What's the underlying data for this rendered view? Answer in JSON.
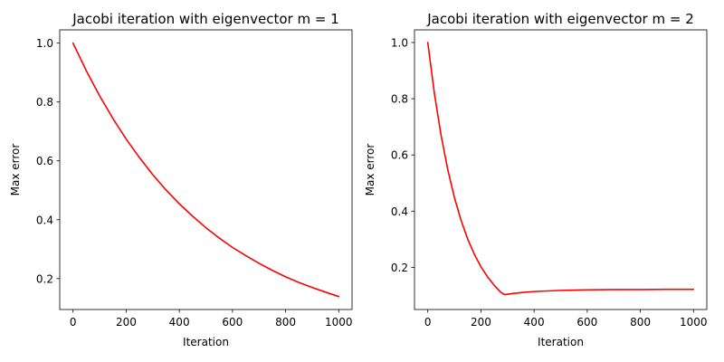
{
  "chart_data": [
    {
      "type": "line",
      "title": "Jacobi iteration with eigenvector m = 1",
      "xlabel": "Iteration",
      "ylabel": "Max error",
      "xlim": [
        -50,
        1050
      ],
      "ylim": [
        0.095,
        1.045
      ],
      "xticks": [
        0,
        200,
        400,
        600,
        800,
        1000
      ],
      "yticks": [
        0.2,
        0.4,
        0.6,
        0.8,
        1.0
      ],
      "xtick_labels": [
        "0",
        "200",
        "400",
        "600",
        "800",
        "1000"
      ],
      "ytick_labels": [
        "0.2",
        "0.4",
        "0.6",
        "0.8",
        "1.0"
      ],
      "grid": false,
      "series": [
        {
          "color": "#ff0000",
          "x": [
            0,
            50,
            100,
            150,
            200,
            250,
            300,
            350,
            400,
            450,
            500,
            550,
            600,
            650,
            700,
            750,
            800,
            850,
            900,
            950,
            1000
          ],
          "y": [
            1.0,
            0.906,
            0.821,
            0.744,
            0.674,
            0.611,
            0.553,
            0.501,
            0.454,
            0.412,
            0.373,
            0.338,
            0.306,
            0.278,
            0.252,
            0.228,
            0.206,
            0.187,
            0.17,
            0.154,
            0.139
          ]
        }
      ]
    },
    {
      "type": "line",
      "title": "Jacobi iteration with eigenvector m = 2",
      "xlabel": "Iteration",
      "ylabel": "Max error",
      "xlim": [
        -50,
        1050
      ],
      "ylim": [
        0.05,
        1.045
      ],
      "xticks": [
        0,
        200,
        400,
        600,
        800,
        1000
      ],
      "yticks": [
        0.2,
        0.4,
        0.6,
        0.8,
        1.0
      ],
      "xtick_labels": [
        "0",
        "200",
        "400",
        "600",
        "800",
        "1000"
      ],
      "ytick_labels": [
        "0.2",
        "0.4",
        "0.6",
        "0.8",
        "1.0"
      ],
      "grid": false,
      "series": [
        {
          "color": "#ff0000",
          "x": [
            0,
            25,
            50,
            75,
            100,
            125,
            150,
            175,
            200,
            225,
            250,
            275,
            290,
            320,
            360,
            400,
            450,
            500,
            600,
            700,
            800,
            900,
            1000
          ],
          "y": [
            1.0,
            0.818,
            0.67,
            0.549,
            0.449,
            0.368,
            0.301,
            0.247,
            0.202,
            0.166,
            0.136,
            0.111,
            0.103,
            0.107,
            0.111,
            0.114,
            0.116,
            0.118,
            0.12,
            0.121,
            0.121,
            0.122,
            0.122
          ]
        }
      ]
    }
  ]
}
